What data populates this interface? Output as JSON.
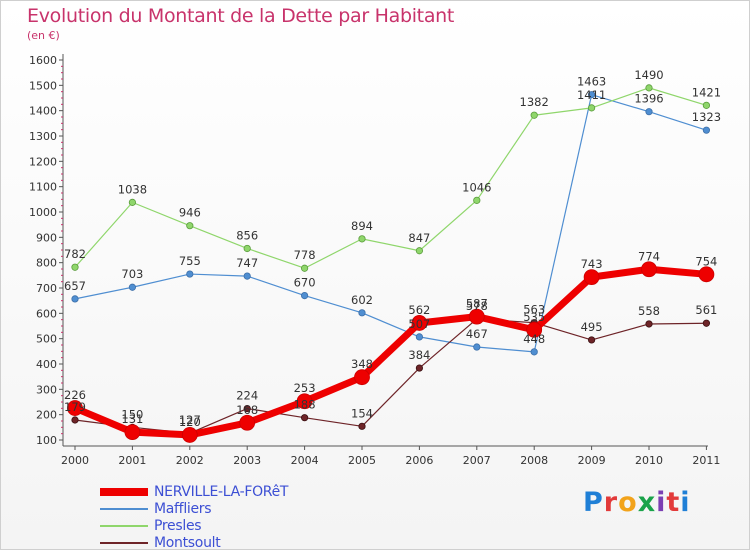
{
  "title": "Evolution du Montant de la Dette par Habitant",
  "subtitle": "(en €)",
  "logo": {
    "text": "Proxiti",
    "colors": [
      "#1f7fd6",
      "#e23a3a",
      "#f2a31b",
      "#1aa34a",
      "#7b3fb3",
      "#e23a3a",
      "#1f7fd6"
    ]
  },
  "chart_data": {
    "type": "line",
    "x": [
      "2000",
      "2001",
      "2002",
      "2003",
      "2004",
      "2005",
      "2006",
      "2007",
      "2008",
      "2009",
      "2010",
      "2011"
    ],
    "ylim": [
      100,
      1600
    ],
    "yticks": [
      100,
      200,
      300,
      400,
      500,
      600,
      700,
      800,
      900,
      1000,
      1100,
      1200,
      1300,
      1400,
      1500,
      1600
    ],
    "grid": false,
    "legend_position": "bottom-left",
    "series": [
      {
        "name": "Maffliers",
        "color": "#4f8ed1",
        "values": [
          657,
          703,
          755,
          747,
          670,
          602,
          507,
          467,
          448,
          1463,
          1396,
          1323
        ]
      },
      {
        "name": "Presles",
        "color": "#8fd66b",
        "values": [
          782,
          1038,
          946,
          856,
          778,
          894,
          847,
          1046,
          1382,
          1411,
          1490,
          1421
        ]
      },
      {
        "name": "Montsoult",
        "color": "#6e2428",
        "values": [
          179,
          150,
          127,
          224,
          188,
          154,
          384,
          578,
          563,
          495,
          558,
          561
        ]
      },
      {
        "name": "NERVILLE-LA-FORêT",
        "color": "#ee0000",
        "values": [
          226,
          131,
          120,
          168,
          253,
          348,
          562,
          587,
          535,
          743,
          774,
          754
        ]
      }
    ],
    "legend_order": [
      3,
      0,
      1,
      2
    ]
  }
}
